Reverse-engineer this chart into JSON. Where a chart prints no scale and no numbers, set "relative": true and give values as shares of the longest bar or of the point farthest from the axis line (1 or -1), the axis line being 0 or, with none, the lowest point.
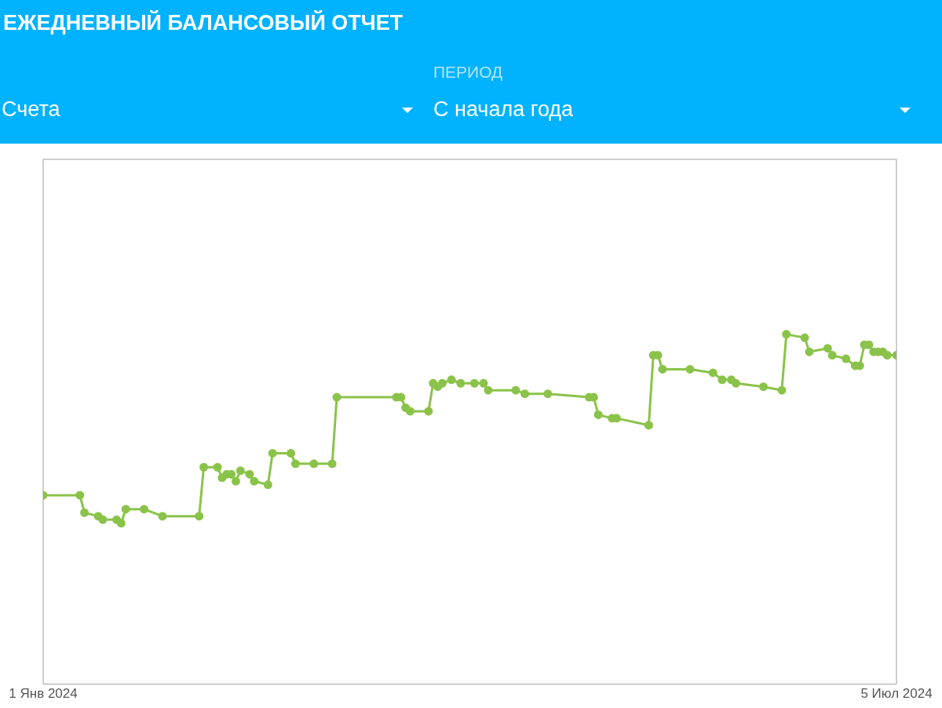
{
  "chart_data": {
    "type": "line",
    "title": "ЕЖЕДНЕВНЫЙ БАЛАНСОВЫЙ ОТЧЕТ",
    "annotations": [
      "ПЕРИОД",
      "Счета",
      "С начала года"
    ],
    "relative": true,
    "legend": false,
    "marker": "circle",
    "line_style": "solid",
    "xlim": [
      "2024-01-01",
      "2024-07-05"
    ],
    "xticks": [
      {
        "value": "2024-01-01",
        "label": "1 Янв 2024"
      },
      {
        "value": "2024-07-05",
        "label": "5 Июл 2024"
      }
    ],
    "x": [
      "2024-01-01",
      "2024-01-09",
      "2024-01-10",
      "2024-01-13",
      "2024-01-14",
      "2024-01-17",
      "2024-01-18",
      "2024-01-19",
      "2024-01-23",
      "2024-01-27",
      "2024-02-04",
      "2024-02-05",
      "2024-02-08",
      "2024-02-09",
      "2024-02-10",
      "2024-02-11",
      "2024-02-12",
      "2024-02-13",
      "2024-02-15",
      "2024-02-16",
      "2024-02-19",
      "2024-02-20",
      "2024-02-24",
      "2024-02-25",
      "2024-02-29",
      "2024-03-04",
      "2024-03-05",
      "2024-03-18",
      "2024-03-19",
      "2024-03-20",
      "2024-03-21",
      "2024-03-25",
      "2024-03-26",
      "2024-03-27",
      "2024-03-28",
      "2024-03-30",
      "2024-04-01",
      "2024-04-04",
      "2024-04-06",
      "2024-04-07",
      "2024-04-13",
      "2024-04-15",
      "2024-04-20",
      "2024-04-29",
      "2024-04-30",
      "2024-05-01",
      "2024-05-04",
      "2024-05-05",
      "2024-05-12",
      "2024-05-13",
      "2024-05-14",
      "2024-05-15",
      "2024-05-21",
      "2024-05-26",
      "2024-05-28",
      "2024-05-30",
      "2024-05-31",
      "2024-06-06",
      "2024-06-10",
      "2024-06-11",
      "2024-06-15",
      "2024-06-16",
      "2024-06-20",
      "2024-06-21",
      "2024-06-24",
      "2024-06-26",
      "2024-06-27",
      "2024-06-28",
      "2024-06-29",
      "2024-06-30",
      "2024-07-01",
      "2024-07-02",
      "2024-07-03",
      "2024-07-05"
    ],
    "series": [
      {
        "color": "#8bc34a",
        "values": [
          0.54,
          0.54,
          0.49,
          0.48,
          0.47,
          0.47,
          0.46,
          0.5,
          0.5,
          0.48,
          0.48,
          0.62,
          0.62,
          0.59,
          0.6,
          0.6,
          0.58,
          0.61,
          0.6,
          0.58,
          0.57,
          0.66,
          0.66,
          0.63,
          0.63,
          0.63,
          0.82,
          0.82,
          0.82,
          0.79,
          0.78,
          0.78,
          0.86,
          0.85,
          0.86,
          0.87,
          0.86,
          0.86,
          0.86,
          0.84,
          0.84,
          0.83,
          0.83,
          0.82,
          0.82,
          0.77,
          0.76,
          0.76,
          0.74,
          0.94,
          0.94,
          0.9,
          0.9,
          0.89,
          0.87,
          0.87,
          0.86,
          0.85,
          0.84,
          1,
          0.99,
          0.95,
          0.96,
          0.94,
          0.93,
          0.91,
          0.91,
          0.97,
          0.97,
          0.95,
          0.95,
          0.95,
          0.94,
          0.94
        ]
      }
    ]
  }
}
